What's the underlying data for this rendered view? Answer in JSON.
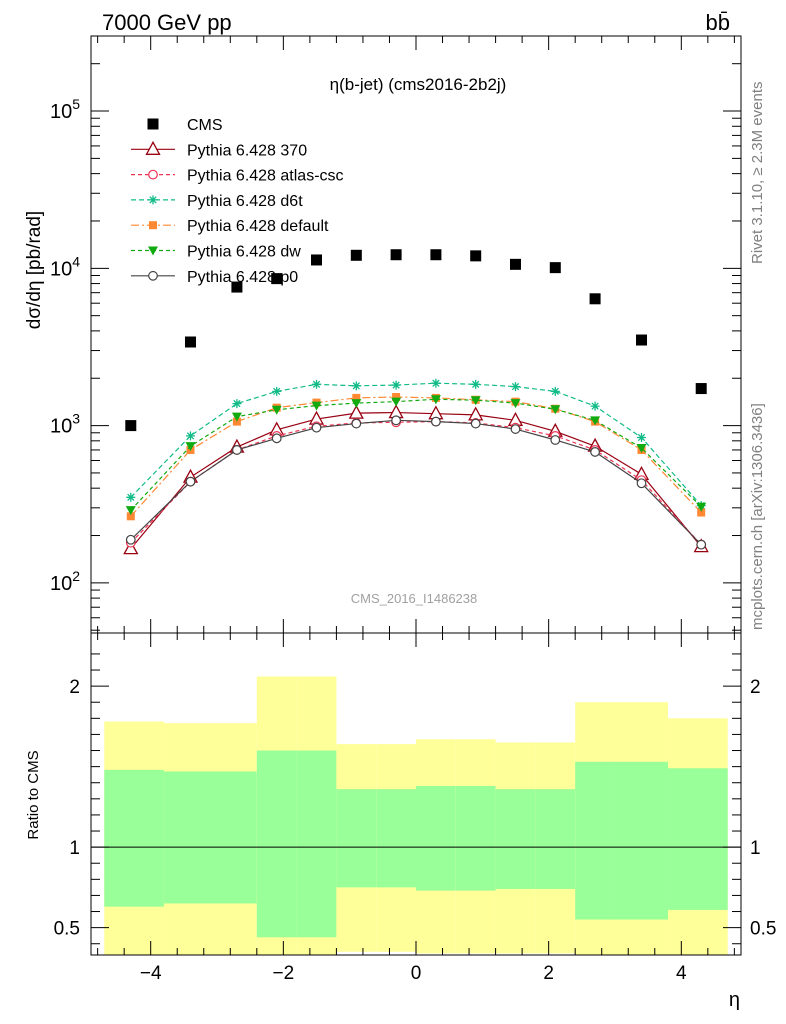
{
  "header": {
    "left": "7000 GeV pp",
    "right": "bb̄",
    "plot_title": "η(b-jet) (cms2016-2b2j)",
    "side_note_top": "Rivet 3.1.10, ≥ 2.3M events",
    "side_note_bottom": "mcplots.cern.ch [arXiv:1306.3436]",
    "watermark": "CMS_2016_I1486238"
  },
  "colors": {
    "CMS": "#000000",
    "p370": "#990011",
    "atlas_csc": "#ee3355",
    "d6t": "#11bb88",
    "default": "#ff8833",
    "dw": "#11aa11",
    "p0": "#444444",
    "band_inner": "#99ff99",
    "band_outer": "#ffff99"
  },
  "chart_data": [
    {
      "type": "scatter",
      "title": "η(b-jet) (cms2016-2b2j)",
      "ylabel": "dσ/dη [pb/rad]",
      "yscale": "log",
      "ylim": [
        48,
        300000
      ],
      "xlim": [
        -4.9,
        4.9
      ],
      "y_ticks": [
        "10^2",
        "10^3",
        "10^4",
        "10^5"
      ],
      "legend_position": "top-left",
      "x": [
        -4.3,
        -3.4,
        -2.7,
        -2.1,
        -1.5,
        -0.9,
        -0.3,
        0.3,
        0.9,
        1.5,
        2.1,
        2.7,
        3.4,
        4.3
      ],
      "series": [
        {
          "name": "CMS",
          "key": "CMS",
          "marker": "square",
          "values": [
            1000,
            3400,
            7600,
            8600,
            11300,
            12100,
            12200,
            12200,
            12000,
            10600,
            10100,
            6400,
            3500,
            1720
          ]
        },
        {
          "name": "Pythia 6.428 370",
          "key": "p370",
          "marker": "triangle-open",
          "dash": "",
          "values": [
            165,
            470,
            730,
            940,
            1100,
            1200,
            1210,
            1190,
            1170,
            1080,
            920,
            740,
            490,
            170
          ]
        },
        {
          "name": "Pythia 6.428 atlas-csc",
          "key": "atlas_csc",
          "marker": "circle-open",
          "dash": "4,3",
          "values": [
            180,
            440,
            700,
            860,
            990,
            1040,
            1050,
            1060,
            1040,
            970,
            860,
            700,
            450,
            175
          ]
        },
        {
          "name": "Pythia 6.428 d6t",
          "key": "d6t",
          "marker": "star",
          "dash": "5,3",
          "values": [
            350,
            860,
            1380,
            1650,
            1830,
            1790,
            1810,
            1860,
            1830,
            1770,
            1650,
            1330,
            840,
            310
          ]
        },
        {
          "name": "Pythia 6.428 default",
          "key": "default",
          "marker": "square-small",
          "dash": "8,3,2,3",
          "values": [
            265,
            700,
            1060,
            1300,
            1400,
            1500,
            1520,
            1500,
            1460,
            1420,
            1280,
            1060,
            700,
            280
          ]
        },
        {
          "name": "Pythia 6.428 dw",
          "key": "dw",
          "marker": "triangle-down",
          "dash": "4,3",
          "values": [
            290,
            740,
            1140,
            1260,
            1340,
            1390,
            1420,
            1470,
            1450,
            1390,
            1270,
            1080,
            720,
            305
          ]
        },
        {
          "name": "Pythia 6.428 p0",
          "key": "p0",
          "marker": "circle-open",
          "dash": "",
          "values": [
            188,
            440,
            700,
            830,
            970,
            1030,
            1080,
            1060,
            1030,
            950,
            810,
            680,
            430,
            175
          ]
        }
      ]
    },
    {
      "type": "area",
      "ylabel": "Ratio to CMS",
      "xlabel": "η",
      "ylim": [
        0.33,
        2.33
      ],
      "xlim": [
        -4.9,
        4.9
      ],
      "x_ticks": [
        "−4",
        "−2",
        "0",
        "2",
        "4"
      ],
      "y_ticks": [
        "0.5",
        "1",
        "2"
      ],
      "reference_line": 1,
      "bin_edges": [
        -4.7,
        -3.8,
        -3.0,
        -2.4,
        -1.8,
        -1.2,
        -0.6,
        0,
        0.6,
        1.2,
        1.8,
        2.4,
        3.0,
        3.8,
        4.7
      ],
      "bands": {
        "inner_hi": [
          1.48,
          1.47,
          1.47,
          1.6,
          1.6,
          1.36,
          1.36,
          1.38,
          1.38,
          1.36,
          1.36,
          1.53,
          1.53,
          1.49
        ],
        "inner_lo": [
          0.63,
          0.65,
          0.65,
          0.44,
          0.44,
          0.75,
          0.75,
          0.73,
          0.73,
          0.74,
          0.74,
          0.55,
          0.55,
          0.61
        ],
        "outer_hi": [
          1.78,
          1.77,
          1.77,
          2.06,
          2.06,
          1.64,
          1.64,
          1.67,
          1.67,
          1.65,
          1.65,
          1.9,
          1.9,
          1.8
        ],
        "outer_lo": [
          0.33,
          0.33,
          0.33,
          0.33,
          0.33,
          0.35,
          0.35,
          0.34,
          0.34,
          0.34,
          0.34,
          0.33,
          0.33,
          0.33
        ]
      }
    }
  ]
}
